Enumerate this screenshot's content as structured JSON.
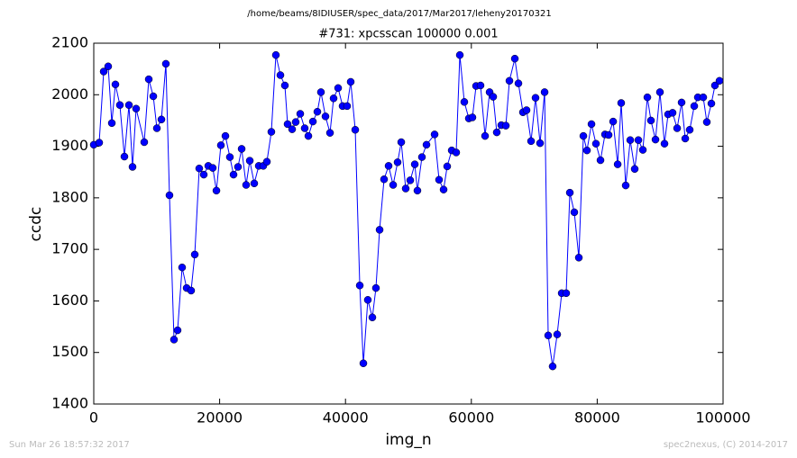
{
  "chart_data": {
    "type": "line",
    "suptitle": "/home/beams/8IDIUSER/spec_data/2017/Mar2017/leheny20170321",
    "title": "#731: xpcsscan 100000 0.001",
    "xlabel": "img_n",
    "ylabel": "ccdc",
    "footer_left": "Sun Mar 26 18:57:32 2017",
    "footer_right": "spec2nexus, (C) 2014-2017",
    "xlim": [
      0,
      100000
    ],
    "xticks": [
      0,
      20000,
      40000,
      60000,
      80000,
      100000
    ],
    "ylim": [
      1400,
      2100
    ],
    "yticks": [
      1400,
      1500,
      1600,
      1700,
      1800,
      1900,
      2000,
      2100
    ],
    "color": "#0000ff",
    "x": [
      0,
      860,
      1580,
      2290,
      2870,
      3440,
      4150,
      4870,
      5590,
      6160,
      6730,
      8020,
      8740,
      9460,
      10030,
      10750,
      11460,
      12030,
      12750,
      13320,
      14040,
      14760,
      15470,
      16050,
      16760,
      17480,
      18200,
      18910,
      19490,
      20200,
      20920,
      21630,
      22210,
      22920,
      23500,
      24210,
      24790,
      25500,
      26220,
      26940,
      27510,
      28220,
      28940,
      29660,
      30370,
      30800,
      31520,
      32090,
      32810,
      33520,
      34100,
      34820,
      35530,
      36100,
      36820,
      37540,
      38110,
      38830,
      39540,
      40260,
      40830,
      41550,
      42270,
      42840,
      43550,
      44270,
      44840,
      45420,
      46130,
      46850,
      47570,
      48280,
      48860,
      49570,
      50290,
      51010,
      51430,
      52150,
      52870,
      54160,
      54870,
      55590,
      56160,
      56880,
      57590,
      58170,
      58880,
      59600,
      60170,
      60750,
      61460,
      62180,
      62900,
      63470,
      64040,
      64760,
      65480,
      66050,
      66910,
      67480,
      68200,
      68770,
      69490,
      70200,
      70920,
      71640,
      72210,
      72920,
      73640,
      74360,
      75070,
      75650,
      76360,
      77080,
      77800,
      78370,
      79090,
      79800,
      80520,
      81240,
      81810,
      82530,
      83250,
      83810,
      84530,
      85250,
      85960,
      86540,
      87250,
      87970,
      88540,
      89260,
      89970,
      90690,
      91260,
      91980,
      92700,
      93410,
      93990,
      94700,
      95420,
      95990,
      96850,
      97420,
      98140,
      98710,
      99430
    ],
    "values": [
      1903,
      1907,
      2045,
      2055,
      1945,
      2020,
      1980,
      1880,
      1980,
      1860,
      1973,
      1908,
      2030,
      1997,
      1935,
      1952,
      2060,
      1805,
      1525,
      1543,
      1665,
      1625,
      1620,
      1690,
      1857,
      1845,
      1862,
      1858,
      1814,
      1902,
      1920,
      1879,
      1845,
      1860,
      1895,
      1825,
      1872,
      1828,
      1862,
      1862,
      1870,
      1928,
      2077,
      2038,
      2018,
      1943,
      1933,
      1947,
      1963,
      1935,
      1920,
      1948,
      1967,
      2005,
      1958,
      1926,
      1993,
      2013,
      1978,
      1978,
      2025,
      1932,
      1630,
      1479,
      1602,
      1568,
      1625,
      1738,
      1836,
      1862,
      1825,
      1869,
      1908,
      1818,
      1834,
      1865,
      1814,
      1879,
      1903,
      1923,
      1835,
      1816,
      1861,
      1892,
      1888,
      2077,
      1986,
      1954,
      1956,
      2017,
      2018,
      1920,
      2005,
      1996,
      1927,
      1941,
      1940,
      2027,
      2070,
      2022,
      1966,
      1970,
      1910,
      1994,
      1906,
      2005,
      1533,
      1473,
      1535,
      1615,
      1615,
      1810,
      1772,
      1684,
      1920,
      1892,
      1943,
      1905,
      1873,
      1923,
      1922,
      1948,
      1865,
      1984,
      1824,
      1912,
      1856,
      1912,
      1893,
      1995,
      1950,
      1913,
      2005,
      1905,
      1962,
      1965,
      1935,
      1985,
      1915,
      1932,
      1978,
      1995,
      1995,
      1947,
      1983,
      2018,
      2027
    ]
  }
}
